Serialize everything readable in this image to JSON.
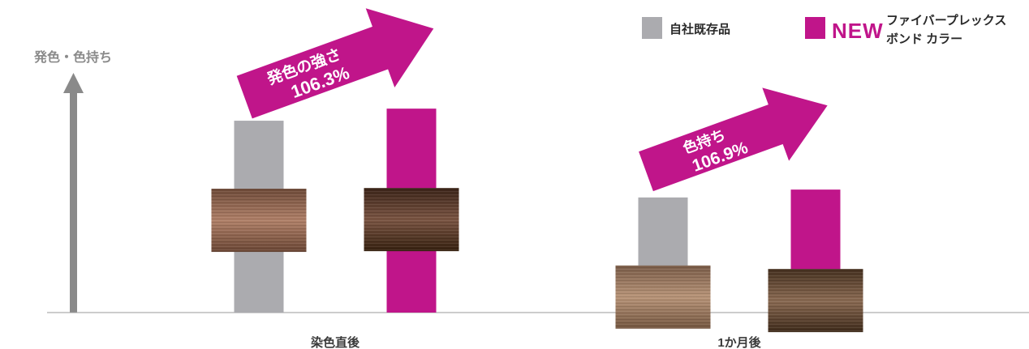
{
  "chart_data": {
    "type": "bar",
    "ylabel": "発色・色持ち",
    "categories": [
      "染色直後",
      "1か月後"
    ],
    "series": [
      {
        "name": "自社既存品",
        "values": [
          100,
          60
        ]
      },
      {
        "name": "ファイバープレックス ボンド カラー",
        "values": [
          106.3,
          64.1
        ]
      }
    ],
    "ylim": [
      0,
      130
    ],
    "legend_position": "top-right",
    "colors": {
      "existing": "#ababaf",
      "new": "#c0158a",
      "axis": "#8a8a8a"
    },
    "legend": {
      "existing_label": "自社既存品",
      "new_tag": "NEW",
      "new_line1": "ファイバープレックス",
      "new_line2": "ボンド カラー"
    },
    "annotations": [
      {
        "category": "染色直後",
        "label": "発色の強さ",
        "value_text": "106.3%"
      },
      {
        "category": "1か月後",
        "label": "色持ち",
        "value_text": "106.9%"
      }
    ],
    "swatches": [
      {
        "category": "染色直後",
        "series": "自社既存品",
        "tone": "light"
      },
      {
        "category": "染色直後",
        "series": "ファイバープレックス ボンド カラー",
        "tone": "dark"
      },
      {
        "category": "1か月後",
        "series": "自社既存品",
        "tone": "light"
      },
      {
        "category": "1か月後",
        "series": "ファイバープレックス ボンド カラー",
        "tone": "dark"
      }
    ]
  }
}
